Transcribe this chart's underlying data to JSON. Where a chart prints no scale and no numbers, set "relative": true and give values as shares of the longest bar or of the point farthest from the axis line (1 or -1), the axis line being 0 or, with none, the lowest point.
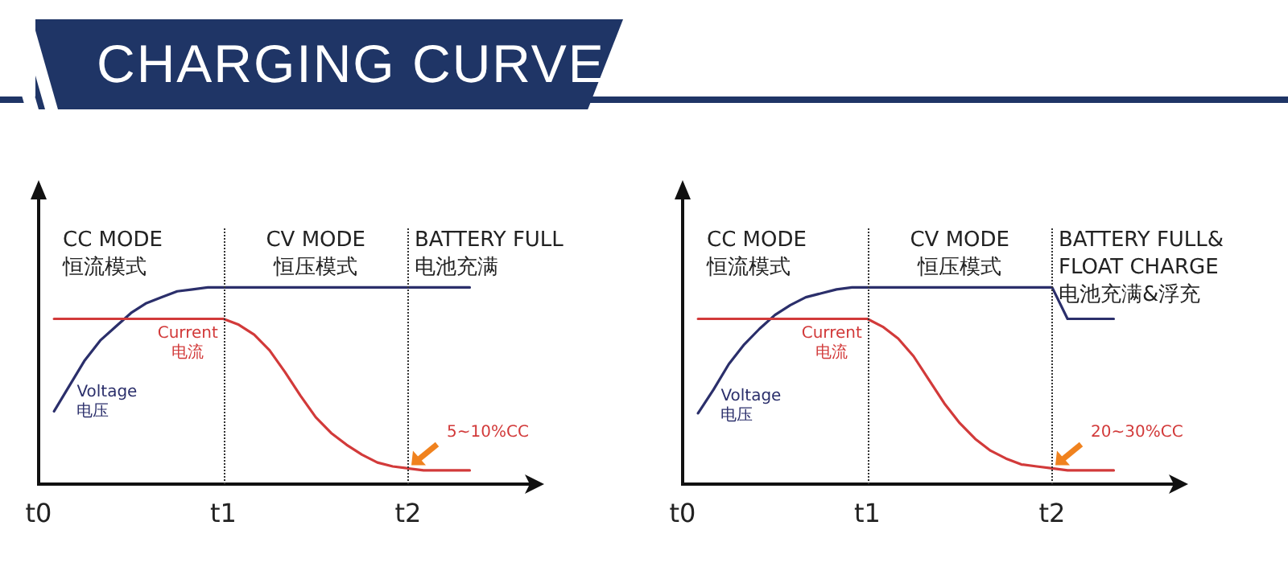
{
  "chart_data": [
    {
      "type": "line",
      "title": "CHARGING CURVE",
      "relative": true,
      "marker": "none",
      "line_style": "solid",
      "grid": false,
      "legend": false,
      "categories": [
        "t0",
        null,
        null,
        null,
        null,
        null,
        null,
        null,
        null,
        null,
        null,
        null,
        "t1",
        null,
        null,
        null,
        null,
        null,
        null,
        null,
        null,
        null,
        null,
        null,
        "t2",
        null,
        null,
        null,
        null,
        null,
        null,
        null,
        null
      ],
      "series": [
        {
          "name": "Voltage\n电压",
          "color": "#2b2f6b",
          "values": [
            null,
            0.37,
            0.5,
            0.63,
            0.73,
            0.8,
            0.87,
            0.92,
            0.95,
            0.98,
            0.99,
            1,
            1,
            1,
            1,
            1,
            1,
            1,
            1,
            1,
            1,
            1,
            1,
            1,
            1,
            1,
            1,
            1,
            1,
            null,
            null,
            null,
            null
          ]
        },
        {
          "name": "Current\n电流",
          "color": "#d23a3a",
          "values": [
            null,
            0.84,
            0.84,
            0.84,
            0.84,
            0.84,
            0.84,
            0.84,
            0.84,
            0.84,
            0.84,
            0.84,
            0.84,
            0.81,
            0.76,
            0.68,
            0.57,
            0.45,
            0.34,
            0.26,
            0.2,
            0.15,
            0.11,
            0.09,
            0.08,
            0.07,
            0.07,
            0.07,
            0.07,
            null,
            null,
            null,
            null
          ]
        }
      ],
      "ref_lines": [
        {
          "axis": "x",
          "value": "t1",
          "color": "#333333",
          "line_style": "dotted"
        },
        {
          "axis": "x",
          "value": "t2",
          "color": "#333333",
          "line_style": "dotted"
        }
      ],
      "annotations": [
        "CC MODE\n恒流模式",
        "CV MODE\n恒压模式",
        "BATTERY FULL\n电池充满",
        {
          "text": "5~10%CC",
          "x": "t2",
          "y": 0.08
        }
      ]
    },
    {
      "type": "line",
      "relative": true,
      "marker": "none",
      "line_style": "solid",
      "grid": false,
      "legend": false,
      "categories": [
        "t0",
        null,
        null,
        null,
        null,
        null,
        null,
        null,
        null,
        null,
        null,
        null,
        "t1",
        null,
        null,
        null,
        null,
        null,
        null,
        null,
        null,
        null,
        null,
        null,
        "t2",
        null,
        null,
        null,
        null,
        null,
        null,
        null,
        null
      ],
      "series": [
        {
          "name": "Voltage\n电压",
          "color": "#2b2f6b",
          "values": [
            null,
            0.36,
            0.48,
            0.61,
            0.71,
            0.79,
            0.86,
            0.91,
            0.95,
            0.97,
            0.99,
            1,
            1,
            1,
            1,
            1,
            1,
            1,
            1,
            1,
            1,
            1,
            1,
            1,
            1,
            0.84,
            0.84,
            0.84,
            0.84,
            null,
            null,
            null,
            null
          ]
        },
        {
          "name": "Current\n电流",
          "color": "#d23a3a",
          "values": [
            null,
            0.84,
            0.84,
            0.84,
            0.84,
            0.84,
            0.84,
            0.84,
            0.84,
            0.84,
            0.84,
            0.84,
            0.84,
            0.8,
            0.74,
            0.65,
            0.53,
            0.41,
            0.31,
            0.23,
            0.17,
            0.13,
            0.1,
            0.09,
            0.08,
            0.07,
            0.07,
            0.07,
            0.07,
            null,
            null,
            null,
            null
          ]
        }
      ],
      "ref_lines": [
        {
          "axis": "x",
          "value": "t1",
          "color": "#333333",
          "line_style": "dotted"
        },
        {
          "axis": "x",
          "value": "t2",
          "color": "#333333",
          "line_style": "dotted"
        }
      ],
      "annotations": [
        "CC MODE\n恒流模式",
        "CV MODE\n恒压模式",
        "BATTERY FULL&\nFLOAT CHARGE\n电池充满&浮充",
        {
          "text": "20~30%CC",
          "x": "t2",
          "y": 0.08
        }
      ]
    }
  ]
}
